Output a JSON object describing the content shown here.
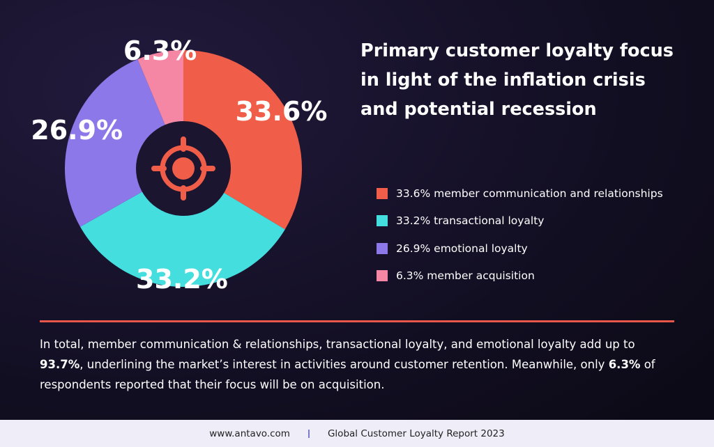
{
  "chart_data": {
    "type": "pie",
    "title": "Primary customer loyalty focus in light of the inflation crisis and potential recession",
    "categories": [
      "33.6% member communication and relationships",
      "33.2% transactional loyalty",
      "26.9% emotional loyalty",
      "6.3% member acquisition"
    ],
    "values": [
      33.6,
      33.2,
      26.9,
      6.3
    ],
    "value_labels": [
      "33.6%",
      "33.2%",
      "26.9%",
      "6.3%"
    ],
    "colors": [
      "#f05d48",
      "#45dedf",
      "#8c78e8",
      "#f587a5"
    ]
  },
  "summary": {
    "parts": [
      "In total, member communication & relationships, transactional loyalty, and emotional loyalty add up to ",
      "93.7%",
      ", underlining the market’s interest in activities around customer retention. Meanwhile, only ",
      "6.3%",
      " of respondents reported that their focus will be on acquisition."
    ]
  },
  "footer": {
    "website": "www.antavo.com",
    "report": "Global Customer Loyalty Report 2023"
  }
}
